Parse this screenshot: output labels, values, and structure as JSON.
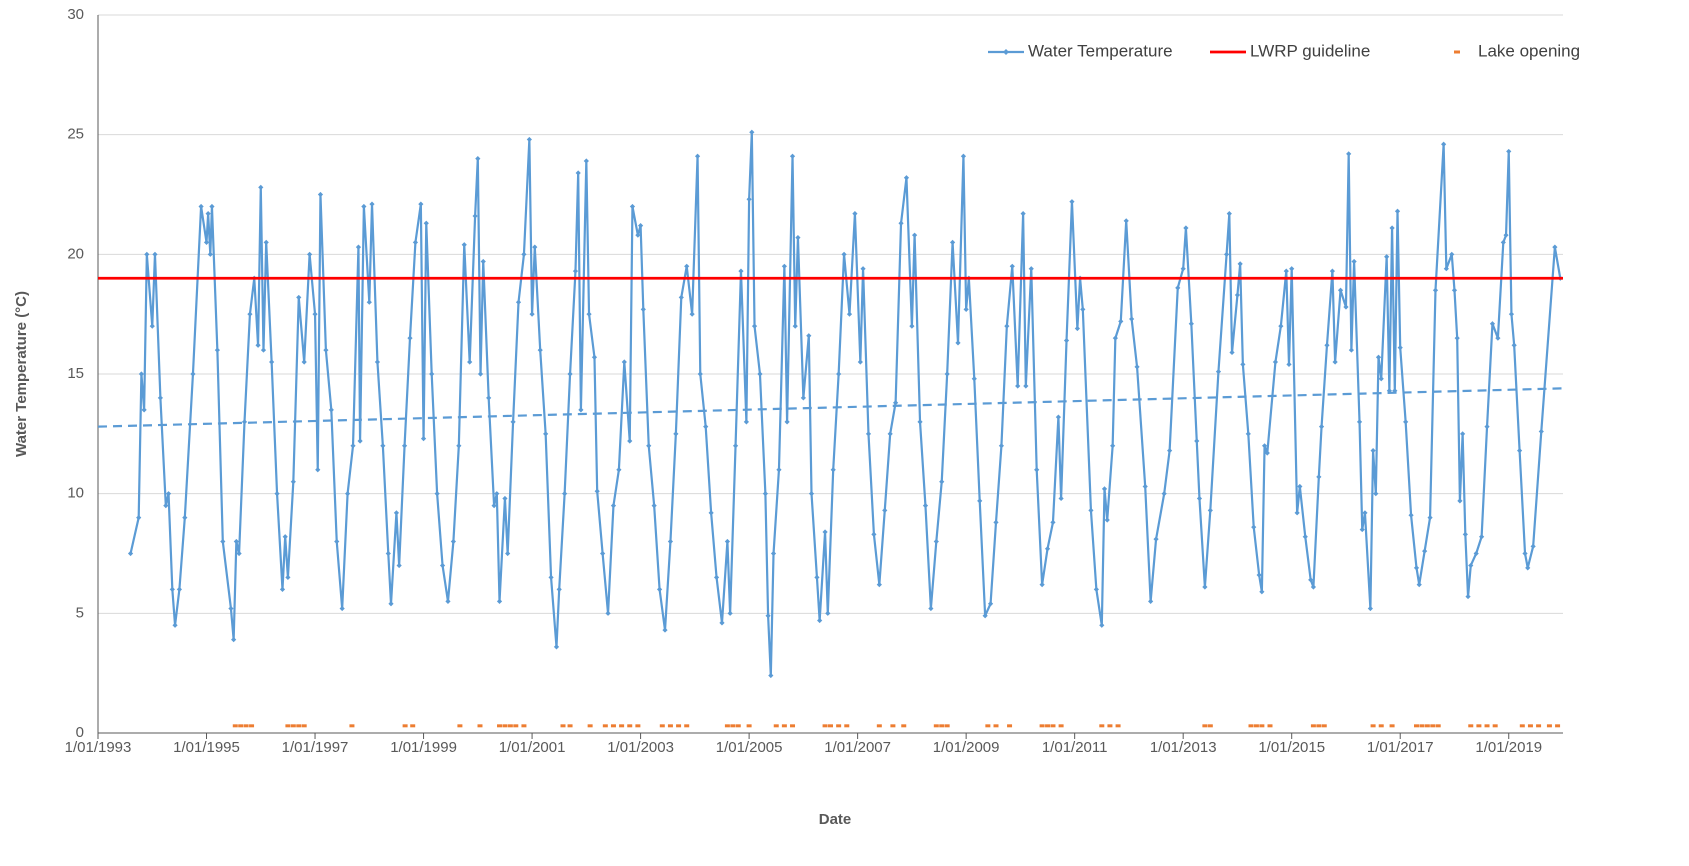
{
  "chart_data": {
    "type": "line",
    "xlabel": "Date",
    "ylabel": "Water Temperature (°C)",
    "xlim": [
      1993,
      2020
    ],
    "ylim": [
      0,
      30
    ],
    "xticks": [
      {
        "value": 1993,
        "label": "1/01/1993"
      },
      {
        "value": 1995,
        "label": "1/01/1995"
      },
      {
        "value": 1997,
        "label": "1/01/1997"
      },
      {
        "value": 1999,
        "label": "1/01/1999"
      },
      {
        "value": 2001,
        "label": "1/01/2001"
      },
      {
        "value": 2003,
        "label": "1/01/2003"
      },
      {
        "value": 2005,
        "label": "1/01/2005"
      },
      {
        "value": 2007,
        "label": "1/01/2007"
      },
      {
        "value": 2009,
        "label": "1/01/2009"
      },
      {
        "value": 2011,
        "label": "1/01/2011"
      },
      {
        "value": 2013,
        "label": "1/01/2013"
      },
      {
        "value": 2015,
        "label": "1/01/2015"
      },
      {
        "value": 2017,
        "label": "1/01/2017"
      },
      {
        "value": 2019,
        "label": "1/01/2019"
      }
    ],
    "yticks": [
      0,
      5,
      10,
      15,
      20,
      25,
      30
    ],
    "grid": true,
    "legend": "top-right",
    "series": [
      {
        "name": "Water Temperature",
        "color": "#5b9bd5",
        "marker": "diamond",
        "x": [
          1993.6,
          1993.75,
          1993.8,
          1993.85,
          1993.9,
          1994.0,
          1994.05,
          1994.15,
          1994.25,
          1994.3,
          1994.37,
          1994.42,
          1994.5,
          1994.6,
          1994.75,
          1994.9,
          1995.0,
          1995.03,
          1995.07,
          1995.1,
          1995.2,
          1995.3,
          1995.45,
          1995.5,
          1995.55,
          1995.6,
          1995.7,
          1995.8,
          1995.88,
          1995.95,
          1996.0,
          1996.05,
          1996.1,
          1996.2,
          1996.3,
          1996.4,
          1996.45,
          1996.5,
          1996.6,
          1996.7,
          1996.8,
          1996.9,
          1997.0,
          1997.05,
          1997.1,
          1997.2,
          1997.3,
          1997.4,
          1997.5,
          1997.6,
          1997.7,
          1997.8,
          1997.83,
          1997.9,
          1998.0,
          1998.05,
          1998.15,
          1998.25,
          1998.35,
          1998.4,
          1998.5,
          1998.55,
          1998.65,
          1998.75,
          1998.85,
          1998.95,
          1999.0,
          1999.05,
          1999.15,
          1999.25,
          1999.35,
          1999.45,
          1999.55,
          1999.65,
          1999.75,
          1999.85,
          1999.95,
          2000.0,
          2000.05,
          2000.1,
          2000.2,
          2000.3,
          2000.35,
          2000.4,
          2000.5,
          2000.55,
          2000.65,
          2000.75,
          2000.85,
          2000.95,
          2001.0,
          2001.05,
          2001.15,
          2001.25,
          2001.35,
          2001.45,
          2001.5,
          2001.6,
          2001.7,
          2001.8,
          2001.85,
          2001.9,
          2002.0,
          2002.05,
          2002.15,
          2002.2,
          2002.3,
          2002.4,
          2002.5,
          2002.6,
          2002.7,
          2002.8,
          2002.85,
          2002.95,
          2003.0,
          2003.05,
          2003.15,
          2003.25,
          2003.35,
          2003.45,
          2003.55,
          2003.65,
          2003.75,
          2003.85,
          2003.95,
          2004.05,
          2004.1,
          2004.2,
          2004.3,
          2004.4,
          2004.5,
          2004.6,
          2004.65,
          2004.75,
          2004.85,
          2004.95,
          2005.0,
          2005.05,
          2005.1,
          2005.2,
          2005.3,
          2005.35,
          2005.4,
          2005.45,
          2005.55,
          2005.65,
          2005.7,
          2005.8,
          2005.85,
          2005.9,
          2006.0,
          2006.1,
          2006.15,
          2006.25,
          2006.3,
          2006.4,
          2006.45,
          2006.55,
          2006.65,
          2006.75,
          2006.85,
          2006.95,
          2007.05,
          2007.1,
          2007.2,
          2007.3,
          2007.4,
          2007.5,
          2007.6,
          2007.7,
          2007.8,
          2007.9,
          2008.0,
          2008.05,
          2008.15,
          2008.25,
          2008.35,
          2008.45,
          2008.55,
          2008.65,
          2008.75,
          2008.85,
          2008.95,
          2009.0,
          2009.05,
          2009.15,
          2009.25,
          2009.35,
          2009.45,
          2009.55,
          2009.65,
          2009.75,
          2009.85,
          2009.95,
          2010.05,
          2010.1,
          2010.2,
          2010.3,
          2010.4,
          2010.5,
          2010.6,
          2010.7,
          2010.75,
          2010.85,
          2010.95,
          2011.05,
          2011.1,
          2011.15,
          2011.3,
          2011.4,
          2011.5,
          2011.55,
          2011.6,
          2011.7,
          2011.75,
          2011.85,
          2011.95,
          2012.05,
          2012.15,
          2012.3,
          2012.4,
          2012.5,
          2012.65,
          2012.75,
          2012.9,
          2013.0,
          2013.05,
          2013.15,
          2013.25,
          2013.3,
          2013.4,
          2013.5,
          2013.65,
          2013.8,
          2013.85,
          2013.9,
          2014.0,
          2014.05,
          2014.1,
          2014.2,
          2014.3,
          2014.4,
          2014.45,
          2014.5,
          2014.55,
          2014.7,
          2014.8,
          2014.9,
          2014.95,
          2015.0,
          2015.1,
          2015.15,
          2015.25,
          2015.35,
          2015.4,
          2015.5,
          2015.55,
          2015.65,
          2015.75,
          2015.8,
          2015.9,
          2016.0,
          2016.05,
          2016.1,
          2016.15,
          2016.25,
          2016.3,
          2016.35,
          2016.45,
          2016.5,
          2016.55,
          2016.6,
          2016.65,
          2016.75,
          2016.8,
          2016.85,
          2016.9,
          2016.95,
          2017.0,
          2017.1,
          2017.2,
          2017.3,
          2017.35,
          2017.45,
          2017.55,
          2017.65,
          2017.8,
          2017.85,
          2017.95,
          2018.0,
          2018.05,
          2018.1,
          2018.15,
          2018.2,
          2018.25,
          2018.3,
          2018.4,
          2018.5,
          2018.6,
          2018.7,
          2018.8,
          2018.9,
          2018.95,
          2019.0,
          2019.05,
          2019.1,
          2019.2,
          2019.3,
          2019.35,
          2019.45,
          2019.6,
          2019.85,
          2019.95
        ],
        "values": [
          7.5,
          9,
          15,
          13.5,
          20,
          17,
          20,
          14,
          9.5,
          10,
          6,
          4.5,
          6,
          9,
          15,
          22,
          20.5,
          21.7,
          20,
          22,
          16,
          8,
          5.2,
          3.9,
          8,
          7.5,
          13,
          17.5,
          19,
          16.2,
          22.8,
          16,
          20.5,
          15.5,
          10,
          6,
          8.2,
          6.5,
          10.5,
          18.2,
          15.5,
          20,
          17.5,
          11,
          22.5,
          16,
          13.5,
          8,
          5.2,
          10,
          12,
          20.3,
          12.2,
          22,
          18,
          22.1,
          15.5,
          12,
          7.5,
          5.4,
          9.2,
          7,
          12,
          16.5,
          20.5,
          22.1,
          12.3,
          21.3,
          15,
          10,
          7,
          5.5,
          8,
          12,
          20.4,
          15.5,
          21.6,
          24,
          15,
          19.7,
          14,
          9.5,
          10,
          5.5,
          9.8,
          7.5,
          13,
          18,
          20,
          24.8,
          17.5,
          20.3,
          16,
          12.5,
          6.5,
          3.6,
          6,
          10,
          15,
          19.3,
          23.4,
          13.5,
          23.9,
          17.5,
          15.7,
          10.1,
          7.5,
          5,
          9.5,
          11,
          15.5,
          12.2,
          22,
          20.8,
          21.2,
          17.7,
          12,
          9.5,
          6,
          4.3,
          8,
          12.5,
          18.2,
          19.5,
          17.5,
          24.1,
          15,
          12.8,
          9.2,
          6.5,
          4.6,
          8,
          5,
          12,
          19.3,
          13,
          22.3,
          25.1,
          17,
          15,
          10,
          4.9,
          2.4,
          7.5,
          11,
          19.5,
          13,
          24.1,
          17,
          20.7,
          14,
          16.6,
          10,
          6.5,
          4.7,
          8.4,
          5,
          11,
          15,
          20,
          17.5,
          21.7,
          15.5,
          19.4,
          12.5,
          8.3,
          6.2,
          9.3,
          12.5,
          13.8,
          21.3,
          23.2,
          17,
          20.8,
          13,
          9.5,
          5.2,
          8,
          10.5,
          15,
          20.5,
          16.3,
          24.1,
          17.7,
          19,
          14.8,
          9.7,
          4.9,
          5.4,
          8.8,
          12,
          17,
          19.5,
          14.5,
          21.7,
          14.5,
          19.4,
          11,
          6.2,
          7.7,
          8.8,
          13.2,
          9.8,
          16.4,
          22.2,
          16.9,
          19,
          17.7,
          9.3,
          6,
          4.5,
          10.2,
          8.9,
          12,
          16.5,
          17.2,
          21.4,
          17.3,
          15.3,
          10.3,
          5.5,
          8.1,
          10,
          11.8,
          18.6,
          19.4,
          21.1,
          17.1,
          12.2,
          9.8,
          6.1,
          9.3,
          15.1,
          20,
          21.7,
          15.9,
          18.3,
          19.6,
          15.4,
          12.5,
          8.6,
          6.6,
          5.9,
          12,
          11.7,
          15.5,
          17,
          19.3,
          15.4,
          19.4,
          9.2,
          10.3,
          8.2,
          6.4,
          6.1,
          10.7,
          12.8,
          16.2,
          19.3,
          15.5,
          18.5,
          17.8,
          24.2,
          16,
          19.7,
          13,
          8.5,
          9.2,
          5.2,
          11.8,
          10,
          15.7,
          14.8,
          19.9,
          14.3,
          21.1,
          14.3,
          21.8,
          16.1,
          13,
          9.1,
          6.9,
          6.2,
          7.6,
          9,
          18.5,
          24.6,
          19.4,
          20,
          18.5,
          16.5,
          9.7,
          12.5,
          8.3,
          5.7,
          7,
          7.5,
          8.2,
          12.8,
          17.1,
          16.5,
          20.5,
          20.8,
          24.3,
          17.5,
          16.2,
          11.8,
          7.5,
          6.9,
          7.8,
          12.6,
          20.3,
          19
        ]
      },
      {
        "name": "LWRP guideline",
        "color": "#ff0000",
        "x": [
          1993,
          2020
        ],
        "values": [
          19,
          19
        ]
      },
      {
        "name": "Lake opening",
        "color": "#ed7d31",
        "marker": "dash",
        "x": [
          1995.53,
          1995.63,
          1995.73,
          1995.83,
          1996.5,
          1996.6,
          1996.7,
          1996.8,
          1997.68,
          1998.66,
          1998.8,
          1999.67,
          2000.04,
          2000.4,
          2000.5,
          2000.6,
          2000.7,
          2000.85,
          2001.57,
          2001.7,
          2002.07,
          2002.35,
          2002.5,
          2002.65,
          2002.8,
          2002.95,
          2003.4,
          2003.55,
          2003.7,
          2003.85,
          2004.6,
          2004.7,
          2004.8,
          2005.0,
          2005.5,
          2005.65,
          2005.8,
          2006.4,
          2006.5,
          2006.65,
          2006.8,
          2007.4,
          2007.65,
          2007.85,
          2008.45,
          2008.55,
          2008.65,
          2009.4,
          2009.55,
          2009.8,
          2010.4,
          2010.5,
          2010.6,
          2010.75,
          2011.5,
          2011.65,
          2011.8,
          2013.4,
          2013.5,
          2014.25,
          2014.35,
          2014.45,
          2014.6,
          2015.4,
          2015.5,
          2015.6,
          2016.5,
          2016.65,
          2016.85,
          2017.3,
          2017.4,
          2017.5,
          2017.6,
          2017.7,
          2018.3,
          2018.45,
          2018.6,
          2018.75,
          2019.25,
          2019.4,
          2019.55,
          2019.75,
          2019.9
        ],
        "values": [
          0.3,
          0.3,
          0.3,
          0.3,
          0.3,
          0.3,
          0.3,
          0.3,
          0.3,
          0.3,
          0.3,
          0.3,
          0.3,
          0.3,
          0.3,
          0.3,
          0.3,
          0.3,
          0.3,
          0.3,
          0.3,
          0.3,
          0.3,
          0.3,
          0.3,
          0.3,
          0.3,
          0.3,
          0.3,
          0.3,
          0.3,
          0.3,
          0.3,
          0.3,
          0.3,
          0.3,
          0.3,
          0.3,
          0.3,
          0.3,
          0.3,
          0.3,
          0.3,
          0.3,
          0.3,
          0.3,
          0.3,
          0.3,
          0.3,
          0.3,
          0.3,
          0.3,
          0.3,
          0.3,
          0.3,
          0.3,
          0.3,
          0.3,
          0.3,
          0.3,
          0.3,
          0.3,
          0.3,
          0.3,
          0.3,
          0.3,
          0.3,
          0.3,
          0.3,
          0.3,
          0.3,
          0.3,
          0.3,
          0.3,
          0.3,
          0.3,
          0.3,
          0.3,
          0.3,
          0.3,
          0.3,
          0.3,
          0.3
        ]
      }
    ],
    "trendline": {
      "color": "#5b9bd5",
      "x": [
        1993,
        2020
      ],
      "values": [
        12.8,
        14.4
      ]
    }
  }
}
